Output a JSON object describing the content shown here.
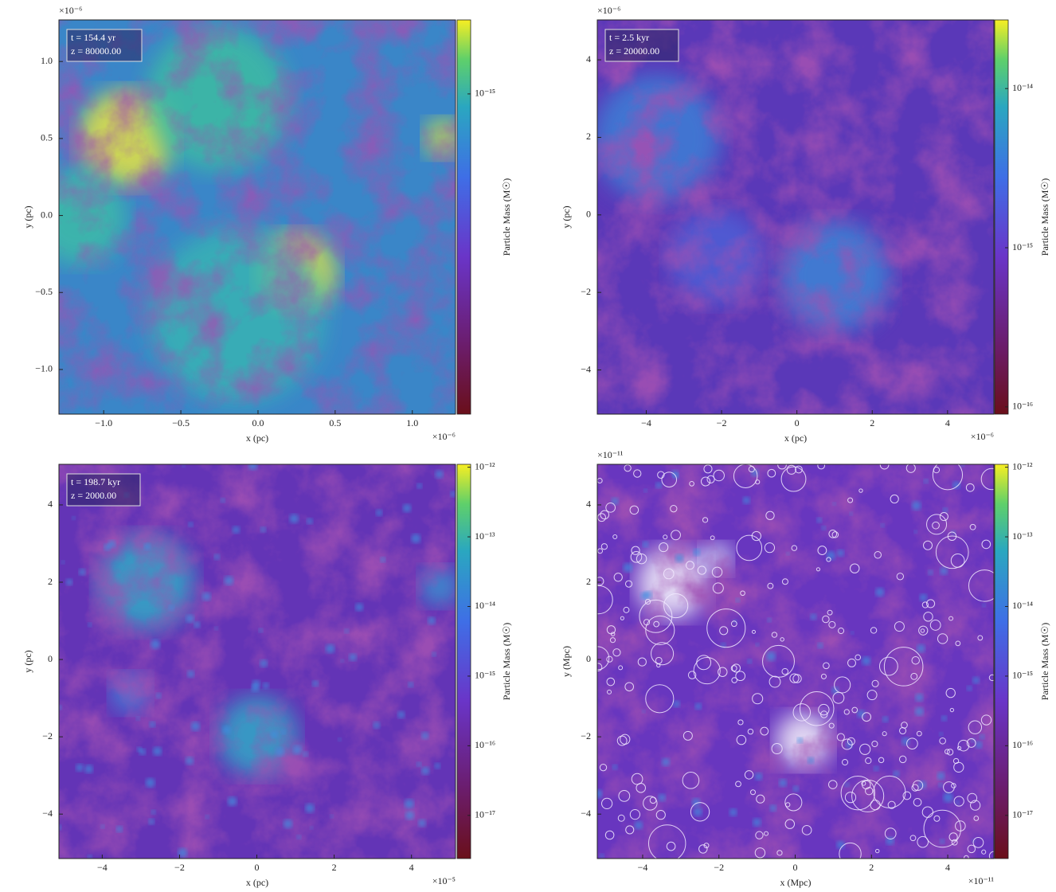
{
  "chart_data": [
    {
      "type": "heatmap",
      "xlabel": "x  (pc)",
      "ylabel": "y  (pc)",
      "x_offset": "×10⁻⁶",
      "y_offset": "×10⁻⁶",
      "annotation": [
        "t = 154.4 yr",
        "z = 80000.00"
      ],
      "xlim": [
        -1.29,
        1.28
      ],
      "ylim": [
        -1.29,
        1.27
      ],
      "xticks": [
        {
          "value": -1.0,
          "label": "−1.0"
        },
        {
          "value": -0.5,
          "label": "−0.5"
        },
        {
          "value": 0.0,
          "label": "0.0"
        },
        0.5,
        {
          "value": 1.0,
          "label": "1.0"
        }
      ],
      "yticks": [
        {
          "value": -1.0,
          "label": "−1.0"
        },
        {
          "value": -0.5,
          "label": "−0.5"
        },
        {
          "value": 0.0,
          "label": "0.0"
        },
        0.5,
        {
          "value": 1.0,
          "label": "1.0"
        }
      ],
      "colorbar": {
        "label": "Particle Mass  (M☉)",
        "log": true,
        "lim": [
          1.6e-17,
          2.6e-15
        ],
        "ticks": [
          {
            "value": 1e-15,
            "label": "10⁻¹⁵"
          }
        ]
      },
      "halos": false
    },
    {
      "type": "heatmap",
      "xlabel": "x  (pc)",
      "ylabel": "y  (pc)",
      "x_offset": "×10⁻⁶",
      "y_offset": "×10⁻⁶",
      "annotation": [
        "t = 2.5 kyr",
        "z = 20000.00"
      ],
      "xlim": [
        -5.3,
        5.23
      ],
      "ylim": [
        -5.14,
        5.03
      ],
      "xticks": [
        {
          "value": -4,
          "label": "−4"
        },
        {
          "value": -2,
          "label": "−2"
        },
        0,
        2,
        4
      ],
      "yticks": [
        {
          "value": -4,
          "label": "−4"
        },
        {
          "value": -2,
          "label": "−2"
        },
        0,
        2,
        4
      ],
      "colorbar": {
        "label": "Particle Mass  (M☉)",
        "log": true,
        "lim": [
          9e-17,
          2.7e-14
        ],
        "ticks": [
          {
            "value": 1e-16,
            "label": "10⁻¹⁶"
          },
          {
            "value": 1e-15,
            "label": "10⁻¹⁵"
          },
          {
            "value": 1e-14,
            "label": "10⁻¹⁴"
          }
        ]
      },
      "halos": false
    },
    {
      "type": "heatmap",
      "xlabel": "x  (pc)",
      "ylabel": "y  (pc)",
      "x_offset": "×10⁻⁵",
      "annotation": [
        "t = 198.7 kyr",
        "z = 2000.00"
      ],
      "xlim": [
        -5.12,
        5.14
      ],
      "ylim": [
        -5.15,
        5.05
      ],
      "xticks": [
        {
          "value": -4,
          "label": "−4"
        },
        {
          "value": -2,
          "label": "−2"
        },
        0,
        2,
        4
      ],
      "yticks": [
        {
          "value": -4,
          "label": "−4"
        },
        {
          "value": -2,
          "label": "−2"
        },
        0,
        2,
        4
      ],
      "colorbar": {
        "label": "Particle Mass  (M☉)",
        "log": true,
        "lim": [
          2.4e-18,
          1.1e-12
        ],
        "ticks": [
          {
            "value": 1e-17,
            "label": "10⁻¹⁷"
          },
          {
            "value": 1e-16,
            "label": "10⁻¹⁶"
          },
          {
            "value": 1e-15,
            "label": "10⁻¹⁵"
          },
          {
            "value": 1e-14,
            "label": "10⁻¹⁴"
          },
          {
            "value": 1e-13,
            "label": "10⁻¹³"
          },
          {
            "value": 1e-12,
            "label": "10⁻¹²"
          }
        ]
      },
      "halos": false
    },
    {
      "type": "heatmap",
      "xlabel": "x  (Mpc)",
      "ylabel": "y  (Mpc)",
      "x_offset": "×10⁻¹¹",
      "y_offset": "×10⁻¹¹",
      "xlim": [
        -5.19,
        5.21
      ],
      "ylim": [
        -5.15,
        5.05
      ],
      "xticks": [
        {
          "value": -4,
          "label": "−4"
        },
        {
          "value": -2,
          "label": "−2"
        },
        0,
        2,
        4
      ],
      "yticks": [
        {
          "value": -4,
          "label": "−4"
        },
        {
          "value": -2,
          "label": "−2"
        },
        0,
        2,
        4
      ],
      "colorbar": {
        "label": "Particle Mass  (M☉)",
        "log": true,
        "lim": [
          2.4e-18,
          1.1e-12
        ],
        "ticks": [
          {
            "value": 1e-17,
            "label": "10⁻¹⁷"
          },
          {
            "value": 1e-16,
            "label": "10⁻¹⁶"
          },
          {
            "value": 1e-15,
            "label": "10⁻¹⁵"
          },
          {
            "value": 1e-14,
            "label": "10⁻¹⁴"
          },
          {
            "value": 1e-13,
            "label": "10⁻¹³"
          },
          {
            "value": 1e-12,
            "label": "10⁻¹²"
          }
        ]
      },
      "halos": true
    }
  ]
}
